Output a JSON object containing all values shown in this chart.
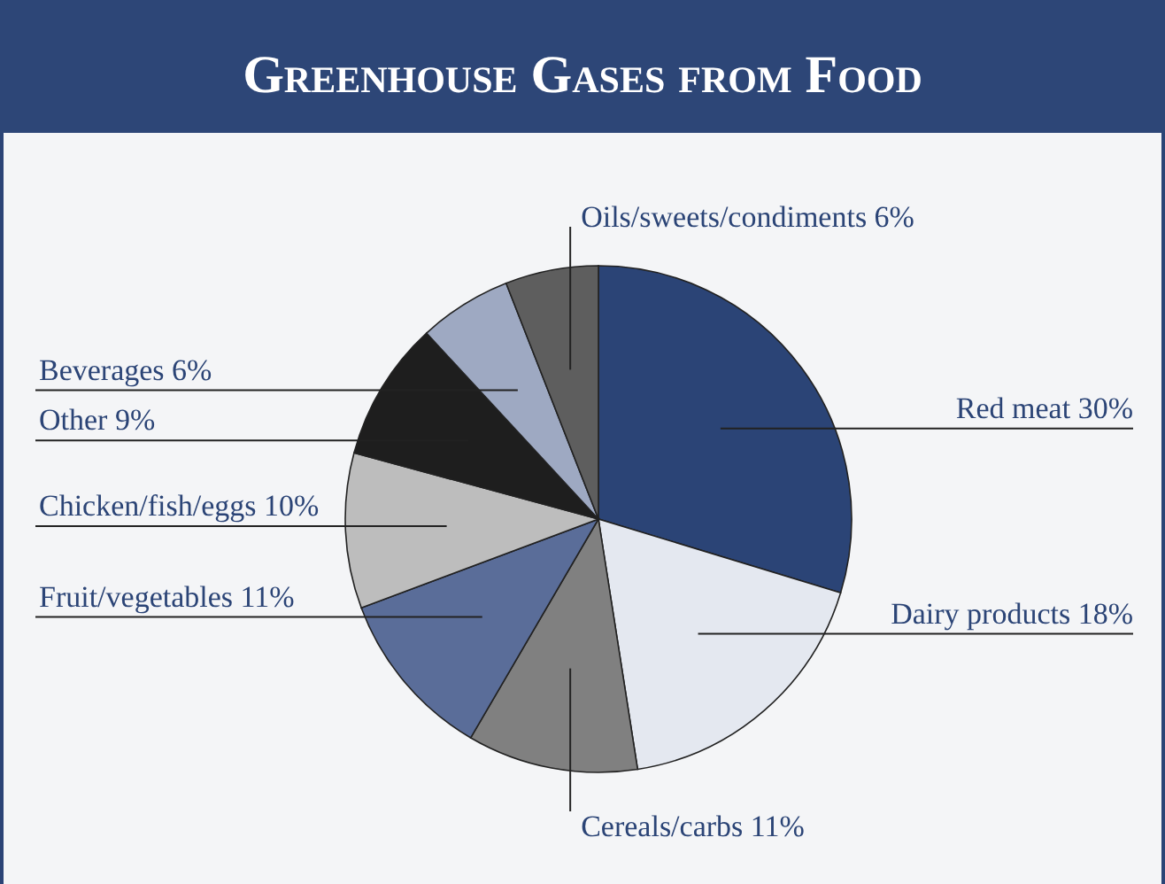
{
  "chart_data": {
    "type": "pie",
    "title": "Greenhouse Gases from Food",
    "categories": [
      "Red meat",
      "Dairy products",
      "Cereals/carbs",
      "Fruit/vegetables",
      "Chicken/fish/eggs",
      "Other",
      "Beverages",
      "Oils/sweets/condiments"
    ],
    "values": [
      30,
      18,
      11,
      11,
      10,
      9,
      6,
      6
    ],
    "value_labels": [
      "30%",
      "18%",
      "11%",
      "11%",
      "10%",
      "9%",
      "6%",
      "6%"
    ],
    "colors": [
      "#2b4476",
      "#e4e8f0",
      "#808080",
      "#5a6d99",
      "#bdbdbd",
      "#1e1e1e",
      "#9ea9c2",
      "#5e5e5e"
    ]
  }
}
